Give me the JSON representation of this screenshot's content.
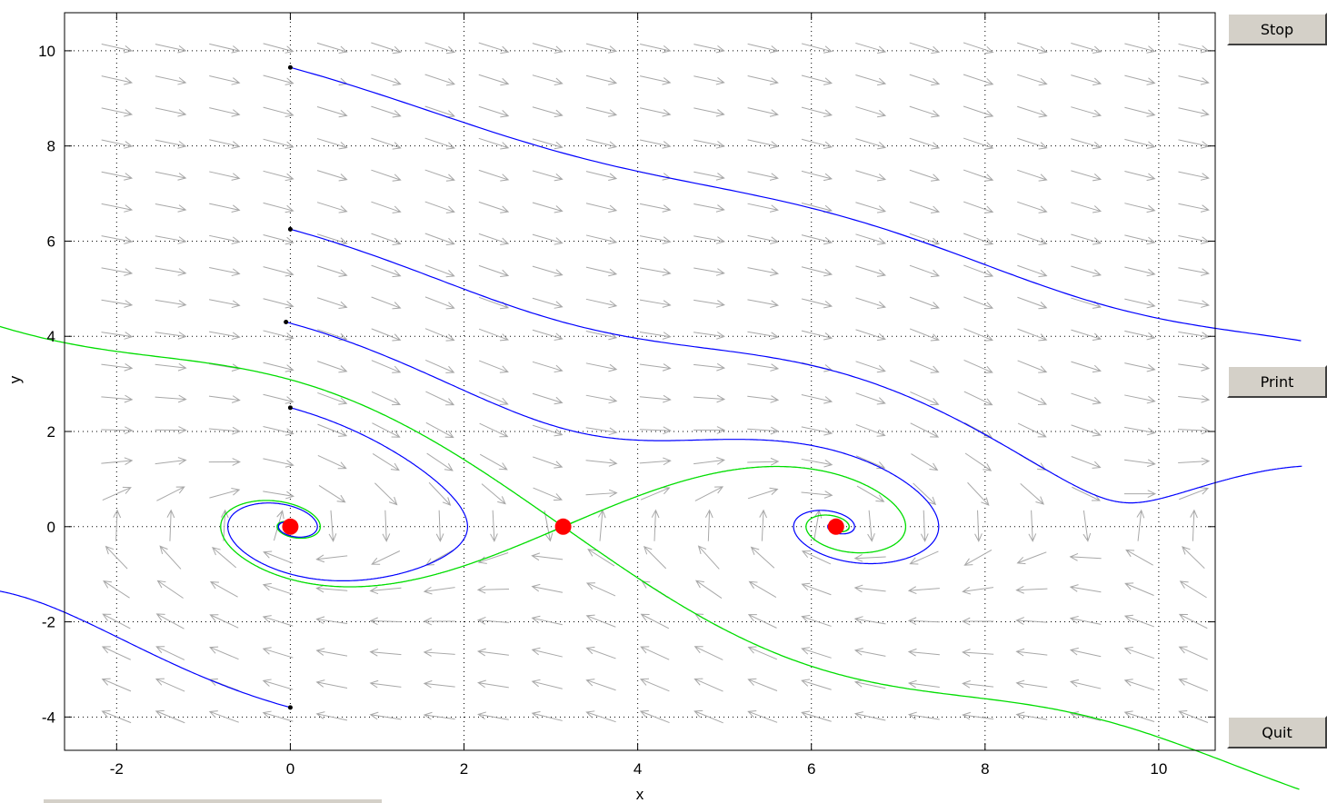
{
  "buttons": {
    "stop": "Stop",
    "print": "Print",
    "quit": "Quit"
  },
  "chart_data": {
    "type": "phase-portrait",
    "title": "",
    "xlabel": "x",
    "ylabel": "y",
    "xlim": [
      -2.6,
      10.65
    ],
    "ylim": [
      -4.7,
      10.8
    ],
    "xticks": [
      -2,
      0,
      2,
      4,
      6,
      8,
      10
    ],
    "yticks": [
      -4,
      -2,
      0,
      2,
      4,
      6,
      8,
      10
    ],
    "grid": true,
    "colors": {
      "trajectory": "#0000ff",
      "separatrix": "#00dd00",
      "equilibrium": "#ff0000",
      "field": "#a8a8a8",
      "start": "#000000"
    },
    "vector_field_spacing": [
      0.62,
      0.67
    ],
    "equilibria": [
      {
        "x": 0,
        "y": 0
      },
      {
        "x": 3.1416,
        "y": 0
      },
      {
        "x": 6.2832,
        "y": 0
      }
    ],
    "trajectory_starts": [
      {
        "x": 0.0,
        "y": 9.65
      },
      {
        "x": 0.0,
        "y": 6.25
      },
      {
        "x": -0.05,
        "y": 4.3
      },
      {
        "x": 0.0,
        "y": 2.5
      },
      {
        "x": 0.0,
        "y": -3.8
      }
    ]
  }
}
